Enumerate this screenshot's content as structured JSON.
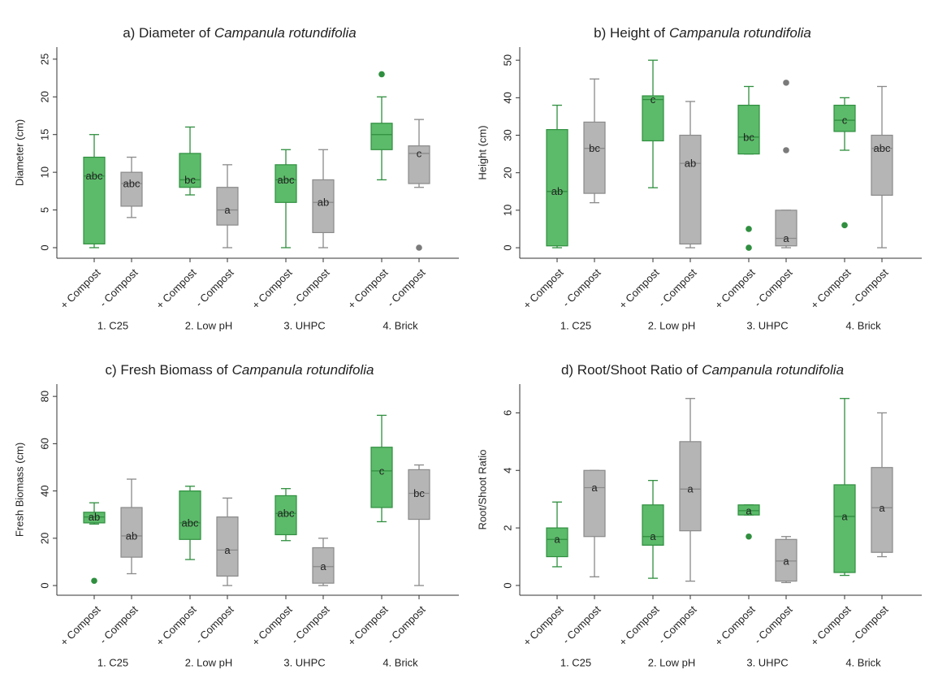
{
  "chart_data": [
    {
      "type": "box",
      "title": "a) Diameter of",
      "title_species": "Campanula rotundifolia",
      "ylabel": "Diameter (cm)",
      "categories": [
        "1. C25",
        "2. Low pH",
        "3. UHPC",
        "4. Brick"
      ],
      "ylim": [
        -1.4,
        26.6
      ],
      "yticks": [
        0,
        5,
        10,
        15,
        20,
        25
      ],
      "series": [
        {
          "name": "+ Compost",
          "color": "#5cbb6a",
          "edge": "#2f8f3f",
          "min": [
            0,
            7,
            0,
            9
          ],
          "q1": [
            0.5,
            8,
            6,
            13
          ],
          "median": [
            9.5,
            9,
            9,
            15
          ],
          "q3": [
            12,
            12.5,
            11,
            16.5
          ],
          "max": [
            15,
            16,
            13,
            20
          ],
          "outliers": [
            [],
            [],
            [],
            [
              23
            ]
          ],
          "letters": [
            "abc",
            "bc",
            "abc",
            null
          ]
        },
        {
          "name": "- Compost",
          "color": "#b5b5b5",
          "edge": "#8a8a8a",
          "min": [
            4,
            0,
            0,
            8
          ],
          "q1": [
            5.5,
            3,
            2,
            8.5
          ],
          "median": [
            8.5,
            5,
            6,
            12.5
          ],
          "q3": [
            10,
            8,
            9,
            13.5
          ],
          "max": [
            12,
            11,
            13,
            17
          ],
          "outliers": [
            [],
            [],
            [],
            [
              0
            ]
          ],
          "letters": [
            "abc",
            "a",
            "ab",
            "c"
          ]
        }
      ]
    },
    {
      "type": "box",
      "title": "b) Height of",
      "title_species": "Campanula rotundifolia",
      "ylabel": "Height (cm)",
      "categories": [
        "1. C25",
        "2. Low pH",
        "3. UHPC",
        "4. Brick"
      ],
      "ylim": [
        -2.8,
        53.5
      ],
      "yticks": [
        0,
        10,
        20,
        30,
        40,
        50
      ],
      "series": [
        {
          "name": "+ Compost",
          "color": "#5cbb6a",
          "edge": "#2f8f3f",
          "min": [
            0,
            16,
            25,
            26
          ],
          "q1": [
            0.5,
            28.5,
            25,
            31
          ],
          "median": [
            15,
            39.5,
            29.5,
            34
          ],
          "q3": [
            31.5,
            40.5,
            38,
            38
          ],
          "max": [
            38,
            50,
            43,
            40
          ],
          "outliers": [
            [],
            [],
            [
              5,
              0
            ],
            [
              6
            ]
          ],
          "letters": [
            "ab",
            "c",
            "bc",
            "c"
          ]
        },
        {
          "name": "- Compost",
          "color": "#b5b5b5",
          "edge": "#8a8a8a",
          "min": [
            12,
            0,
            0,
            0
          ],
          "q1": [
            14.5,
            1,
            0.5,
            14
          ],
          "median": [
            26.5,
            22.5,
            2.5,
            26.5
          ],
          "q3": [
            33.5,
            30,
            10,
            30
          ],
          "max": [
            45,
            39,
            10,
            43
          ],
          "outliers": [
            [],
            [],
            [
              44,
              26
            ],
            []
          ],
          "letters": [
            "bc",
            "ab",
            "a",
            "abc"
          ]
        }
      ]
    },
    {
      "type": "box",
      "title": "c) Fresh Biomass of",
      "title_species": "Campanula rotundifolia",
      "ylabel": "Fresh Biomass (cm)",
      "categories": [
        "1. C25",
        "2. Low pH",
        "3. UHPC",
        "4. Brick"
      ],
      "ylim": [
        -4.1,
        85.2
      ],
      "yticks": [
        0,
        20,
        40,
        60,
        80
      ],
      "series": [
        {
          "name": "+ Compost",
          "color": "#5cbb6a",
          "edge": "#2f8f3f",
          "min": [
            26,
            11,
            19,
            27
          ],
          "q1": [
            26.5,
            19.5,
            21.5,
            33
          ],
          "median": [
            29,
            26.5,
            30.5,
            48.5
          ],
          "q3": [
            31,
            40,
            38,
            58.5
          ],
          "max": [
            35,
            42,
            41,
            72
          ],
          "outliers": [
            [
              2
            ],
            [],
            [],
            []
          ],
          "letters": [
            "ab",
            "abc",
            "abc",
            "c"
          ]
        },
        {
          "name": "- Compost",
          "color": "#b5b5b5",
          "edge": "#8a8a8a",
          "min": [
            5,
            0,
            0,
            0
          ],
          "q1": [
            12,
            4,
            1,
            28
          ],
          "median": [
            21,
            15,
            8,
            39
          ],
          "q3": [
            33,
            29,
            16,
            49
          ],
          "max": [
            45,
            37,
            20,
            51
          ],
          "outliers": [
            [],
            [],
            [],
            []
          ],
          "letters": [
            "ab",
            "a",
            "a",
            "bc"
          ]
        }
      ]
    },
    {
      "type": "box",
      "title": "d) Root/Shoot Ratio of",
      "title_species": "Campanula rotundifolia",
      "ylabel": "Root/Shoot Ratio",
      "categories": [
        "1. C25",
        "2. Low pH",
        "3. UHPC",
        "4. Brick"
      ],
      "ylim": [
        -0.34,
        7.0
      ],
      "yticks": [
        0,
        2,
        4,
        6
      ],
      "series": [
        {
          "name": "+ Compost",
          "color": "#5cbb6a",
          "edge": "#2f8f3f",
          "min": [
            0.65,
            0.25,
            2.45,
            0.35
          ],
          "q1": [
            1.0,
            1.4,
            2.45,
            0.45
          ],
          "median": [
            1.6,
            1.7,
            2.6,
            2.4
          ],
          "q3": [
            2.0,
            2.8,
            2.8,
            3.5
          ],
          "max": [
            2.9,
            3.65,
            2.8,
            6.5
          ],
          "outliers": [
            [],
            [],
            [
              1.7
            ],
            []
          ],
          "letters": [
            "a",
            "a",
            "a",
            "a"
          ]
        },
        {
          "name": "- Compost",
          "color": "#b5b5b5",
          "edge": "#8a8a8a",
          "min": [
            0.3,
            0.15,
            0.1,
            1.0
          ],
          "q1": [
            1.7,
            1.9,
            0.15,
            1.15
          ],
          "median": [
            3.4,
            3.35,
            0.85,
            2.7
          ],
          "q3": [
            4.0,
            5.0,
            1.6,
            4.1
          ],
          "max": [
            4.0,
            6.5,
            1.7,
            6.0
          ],
          "outliers": [
            [],
            [],
            [],
            []
          ],
          "letters": [
            "a",
            "a",
            "a",
            "a"
          ]
        }
      ]
    }
  ]
}
